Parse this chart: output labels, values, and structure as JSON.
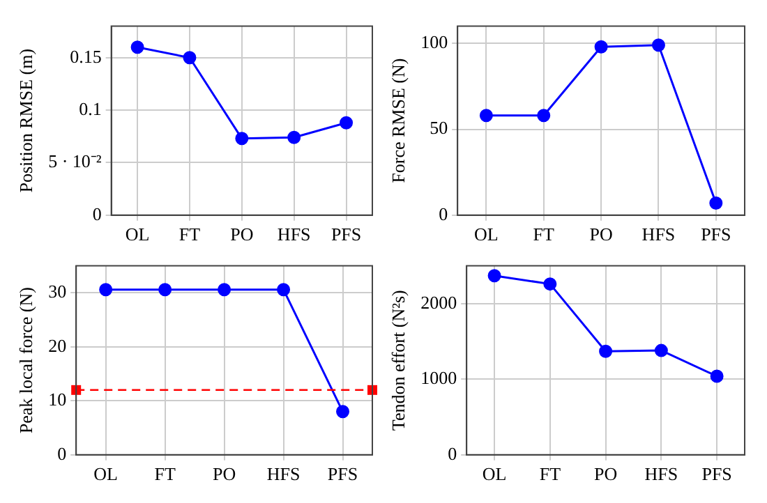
{
  "chart_data": [
    {
      "type": "line",
      "ylabel": "Position RMSE (m)",
      "categories": [
        "OL",
        "FT",
        "PO",
        "HFS",
        "PFS"
      ],
      "series": [
        {
          "color": "#0000ff",
          "values": [
            0.16,
            0.15,
            0.073,
            0.074,
            0.088
          ]
        }
      ],
      "ylim": [
        0,
        0.18
      ],
      "yticks": [
        0,
        {
          "value": 0.05,
          "label": "5 · 10⁻²"
        },
        0.1,
        0.15
      ],
      "grid": true,
      "marker": "circle",
      "legend": false
    },
    {
      "type": "line",
      "ylabel": "Force RMSE (N)",
      "categories": [
        "OL",
        "FT",
        "PO",
        "HFS",
        "PFS"
      ],
      "series": [
        {
          "color": "#0000ff",
          "values": [
            58,
            58,
            98,
            99,
            7
          ]
        }
      ],
      "ylim": [
        0,
        110
      ],
      "yticks": [
        0,
        50,
        100
      ],
      "grid": true,
      "marker": "circle",
      "legend": false
    },
    {
      "type": "line",
      "ylabel": "Peak local force (N)",
      "categories": [
        "OL",
        "FT",
        "PO",
        "HFS",
        "PFS"
      ],
      "series": [
        {
          "color": "#0000ff",
          "values": [
            30.6,
            30.6,
            30.6,
            30.6,
            8
          ]
        }
      ],
      "ylim": [
        0,
        35
      ],
      "yticks": [
        0,
        10,
        20,
        30
      ],
      "grid": true,
      "marker": "circle",
      "legend": false,
      "ref_lines": [
        {
          "axis": "y",
          "value": 12,
          "color": "#ff0000",
          "line_style": "dashed"
        }
      ]
    },
    {
      "type": "line",
      "ylabel": "Tendon effort (N²s)",
      "categories": [
        "OL",
        "FT",
        "PO",
        "HFS",
        "PFS"
      ],
      "series": [
        {
          "color": "#0000ff",
          "values": [
            2370,
            2260,
            1370,
            1380,
            1040
          ]
        }
      ],
      "ylim": [
        0,
        2500
      ],
      "yticks": [
        0,
        1000,
        2000
      ],
      "grid": true,
      "marker": "circle",
      "legend": false
    }
  ]
}
